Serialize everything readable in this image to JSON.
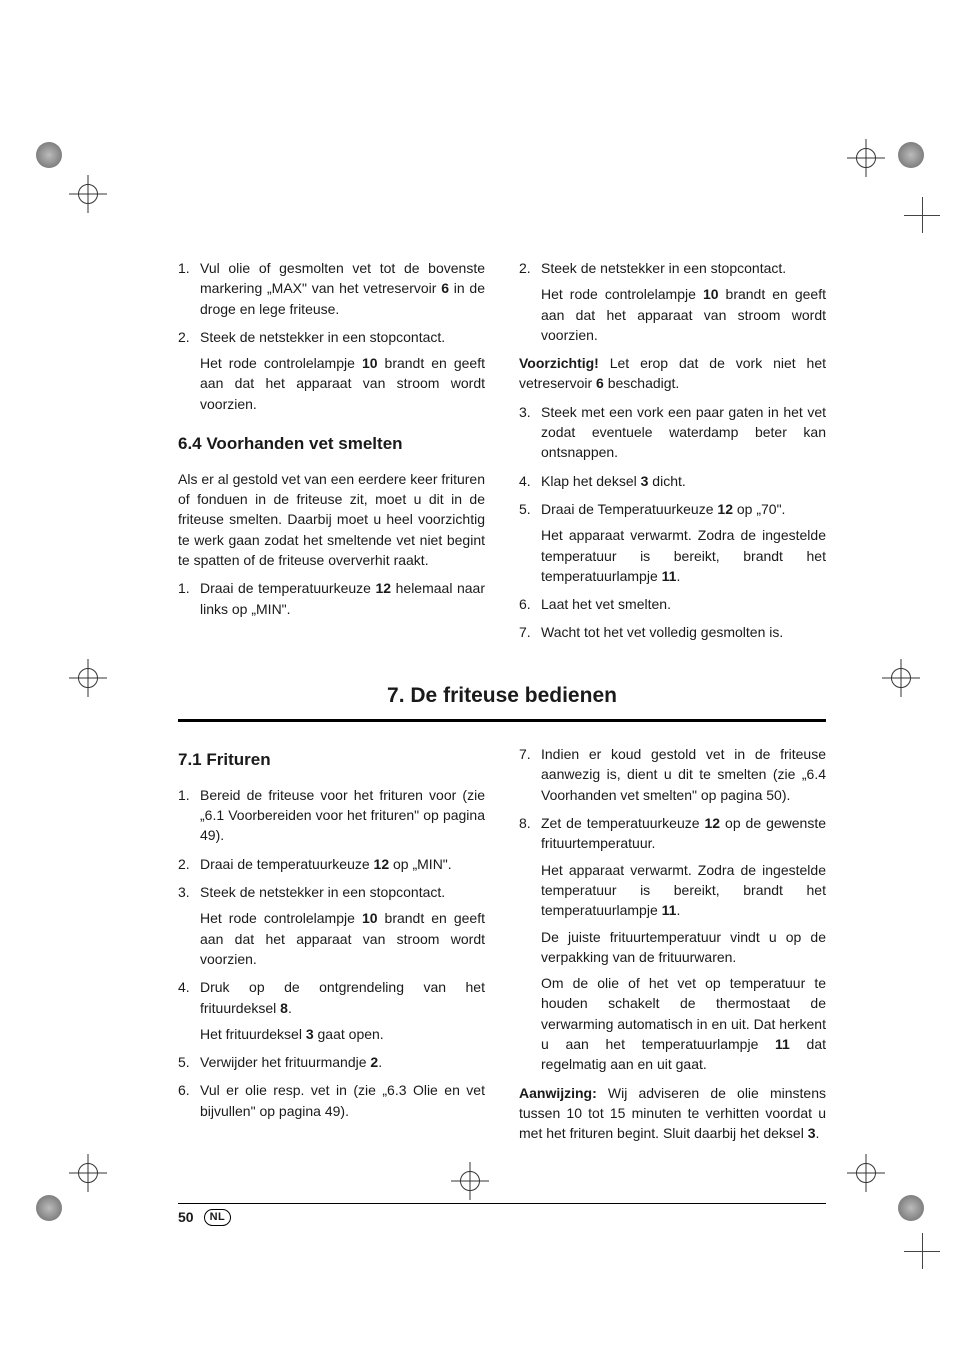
{
  "page_number": "50",
  "lang_badge": "NL",
  "top": {
    "left": {
      "items": [
        {
          "n": "1.",
          "text": "Vul olie of gesmolten vet tot de bovenste markering „MAX\" van het vetreservoir <b class=\"ref\">6</b> in de droge en lege friteuse."
        },
        {
          "n": "2.",
          "text": "Steek de netstekker in een stopcontact.",
          "sub": "Het rode controlelampje <b class=\"ref\">10</b> brandt en geeft aan dat het apparaat van stroom wordt voorzien."
        }
      ],
      "heading": "6.4 Voorhanden vet smelten",
      "para": "Als er al gestold vet van een eerdere keer frituren of fonduen in de friteuse zit, moet u dit in de friteuse smelten. Daarbij moet u heel voorzichtig te werk gaan zodat het smeltende vet niet begint te spatten of de friteuse oververhit raakt.",
      "items2": [
        {
          "n": "1.",
          "text": "Draai de temperatuurkeuze <b class=\"ref\">12</b> helemaal naar links op „MIN\"."
        }
      ]
    },
    "right": {
      "items": [
        {
          "n": "2.",
          "text": "Steek de netstekker in een stopcontact.",
          "sub": "Het rode controlelampje <b class=\"ref\">10</b> brandt en geeft aan dat het apparaat van stroom wordt voorzien."
        }
      ],
      "warn": "<b>Voorzichtig!</b> Let erop dat de vork niet het vetreservoir <b class=\"ref\">6</b> beschadigt.",
      "items2": [
        {
          "n": "3.",
          "text": "Steek met een vork een paar gaten in het vet zodat eventuele waterdamp beter kan ontsnappen."
        },
        {
          "n": "4.",
          "text": "Klap het deksel <b class=\"ref\">3</b> dicht."
        },
        {
          "n": "5.",
          "text": "Draai de Temperatuurkeuze <b class=\"ref\">12</b> op „70\".",
          "sub": "Het apparaat verwarmt. Zodra de ingestelde temperatuur is bereikt, brandt het temperatuurlampje <b class=\"ref\">11</b>."
        },
        {
          "n": "6.",
          "text": "Laat het vet smelten."
        },
        {
          "n": "7.",
          "text": "Wacht tot het vet volledig gesmolten is."
        }
      ]
    }
  },
  "section7": {
    "title": "7. De friteuse bedienen",
    "left": {
      "heading": "7.1 Frituren",
      "items": [
        {
          "n": "1.",
          "text": "Bereid de friteuse voor het frituren voor (zie „6.1 Voorbereiden voor het frituren\" op pagina 49)."
        },
        {
          "n": "2.",
          "text": "Draai de temperatuurkeuze <b class=\"ref\">12</b> op „MIN\"."
        },
        {
          "n": "3.",
          "text": "Steek de netstekker in een stopcontact.",
          "sub": "Het rode controlelampje <b class=\"ref\">10</b> brandt en geeft aan dat het apparaat van stroom wordt voorzien."
        },
        {
          "n": "4.",
          "text": "Druk op de ontgrendeling van het frituurdeksel <b class=\"ref\">8</b>.",
          "sub": "Het frituurdeksel <b class=\"ref\">3</b> gaat open."
        },
        {
          "n": "5.",
          "text": "Verwijder het frituurmandje <b class=\"ref\">2</b>."
        },
        {
          "n": "6.",
          "text": "Vul er olie resp. vet in (zie „6.3 Olie en vet bijvullen\" op pagina 49)."
        }
      ]
    },
    "right": {
      "items": [
        {
          "n": "7.",
          "text": "Indien er koud gestold vet in de friteuse aanwezig is, dient u dit te smelten (zie „6.4 Voorhanden vet smelten\" op pagina 50)."
        },
        {
          "n": "8.",
          "text": "Zet de temperatuurkeuze <b class=\"ref\">12</b> op de gewenste frituurtemperatuur.",
          "subs": [
            "Het apparaat verwarmt. Zodra de ingestelde temperatuur is bereikt, brandt het temperatuurlampje <b class=\"ref\">11</b>.",
            "De juiste frituurtemperatuur vindt u op de verpakking van de frituurwaren.",
            "Om de olie of het vet op temperatuur te houden schakelt de thermostaat de verwarming automatisch in en uit. Dat herkent u aan het temperatuurlampje <b class=\"ref\">11</b> dat regelmatig aan en uit gaat."
          ]
        }
      ],
      "note": "<b>Aanwijzing:</b> Wij adviseren de olie minstens tussen 10 tot 15 minuten te verhitten voordat u met het frituren begint. Sluit daarbij het deksel <b class=\"ref\">3</b>."
    }
  }
}
